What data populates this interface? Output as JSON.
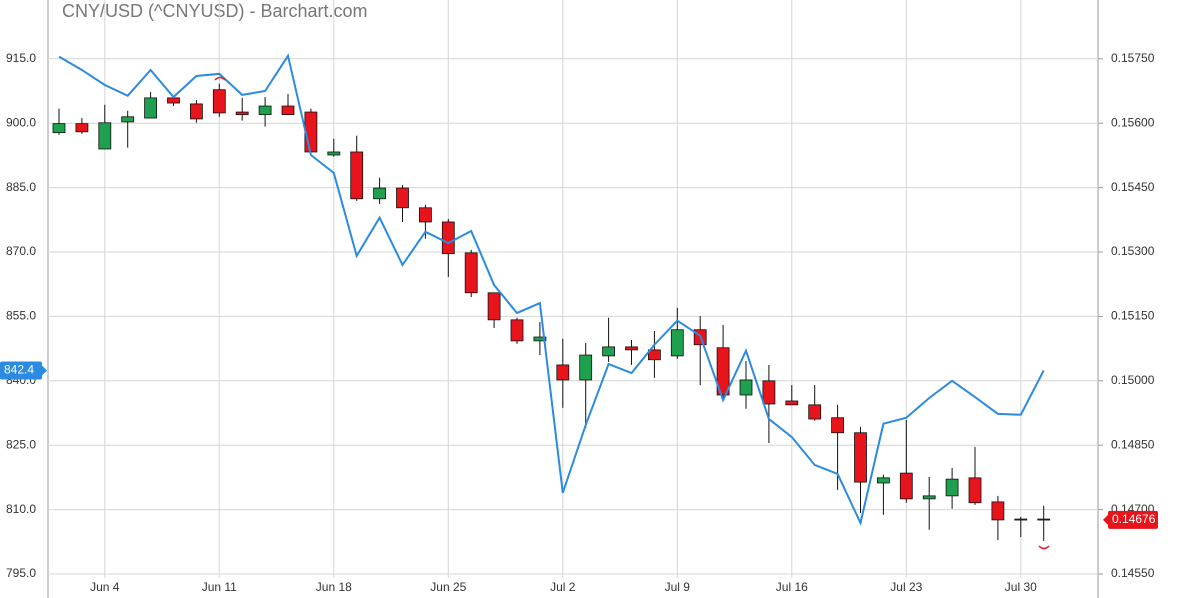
{
  "chart_data": {
    "type": "candlestick",
    "title": "CNY/USD (^CNYUSD) - Barchart.com",
    "categories": [
      null,
      null,
      "Jun 4",
      null,
      null,
      null,
      null,
      "Jun 11",
      null,
      null,
      null,
      null,
      "Jun 18",
      null,
      null,
      null,
      null,
      "Jun 25",
      null,
      null,
      null,
      null,
      "Jul 2",
      null,
      null,
      null,
      null,
      "Jul 9",
      null,
      null,
      null,
      null,
      "Jul 16",
      null,
      null,
      null,
      null,
      "Jul 23",
      null,
      null,
      null,
      null,
      "Jul 30",
      null
    ],
    "series": [
      {
        "type": "candlestick",
        "axis": "y2",
        "up_color": "#1ea04e",
        "down_color": "#e8141c",
        "open": [
          0.15578,
          0.15599,
          0.1554,
          0.15603,
          0.15612,
          0.15659,
          0.15645,
          0.15678,
          0.15626,
          0.1562,
          0.1564,
          0.15626,
          0.15526,
          0.15533,
          0.15424,
          0.15449,
          0.15403,
          0.1537,
          0.15298,
          0.15205,
          0.15142,
          0.15093,
          0.15037,
          0.15002,
          0.15058,
          0.15079,
          0.15072,
          0.15058,
          0.15119,
          0.15077,
          0.14967,
          0.15,
          0.14953,
          0.14944,
          0.14914,
          0.14879,
          0.14762,
          0.14785,
          0.14725,
          0.14732,
          0.14774,
          0.14718,
          0.14678,
          0.14678
        ],
        "high": [
          0.15634,
          0.15612,
          0.15643,
          0.15629,
          0.15673,
          0.15664,
          0.15654,
          0.15692,
          0.15659,
          0.15661,
          0.15668,
          0.15634,
          0.15564,
          0.15571,
          0.15473,
          0.15456,
          0.1541,
          0.15377,
          0.15305,
          0.15205,
          0.15147,
          0.15137,
          0.15098,
          0.15088,
          0.15147,
          0.15095,
          0.15116,
          0.1517,
          0.15151,
          0.1513,
          0.15046,
          0.15037,
          0.1499,
          0.1499,
          0.14944,
          0.14893,
          0.14781,
          0.14909,
          0.14776,
          0.14797,
          0.14846,
          0.14732,
          0.14683,
          0.14709
        ],
        "low": [
          0.15573,
          0.15575,
          0.1554,
          0.15543,
          0.15612,
          0.1564,
          0.15601,
          0.15615,
          0.15606,
          0.15592,
          0.1562,
          0.15533,
          0.15522,
          0.15419,
          0.15412,
          0.1537,
          0.15331,
          0.15242,
          0.15195,
          0.15123,
          0.15086,
          0.1506,
          0.14937,
          0.1489,
          0.15044,
          0.15037,
          0.15007,
          0.15051,
          0.1499,
          0.14958,
          0.14935,
          0.14855,
          0.14944,
          0.14907,
          0.14746,
          0.14692,
          0.14688,
          0.14716,
          0.14653,
          0.14702,
          0.14711,
          0.14629,
          0.14636,
          0.14627
        ],
        "close": [
          0.15599,
          0.1558,
          0.15601,
          0.15615,
          0.15659,
          0.15647,
          0.1561,
          0.15624,
          0.1562,
          0.1564,
          0.1562,
          0.15533,
          0.15533,
          0.15424,
          0.15449,
          0.15403,
          0.1537,
          0.15296,
          0.15205,
          0.15142,
          0.15093,
          0.15102,
          0.15002,
          0.1506,
          0.15079,
          0.15072,
          0.15049,
          0.15119,
          0.15084,
          0.14967,
          0.15002,
          0.14946,
          0.14944,
          0.14911,
          0.14879,
          0.14764,
          0.14774,
          0.14725,
          0.14732,
          0.14771,
          0.14716,
          0.14676,
          0.14676,
          0.14676
        ]
      },
      {
        "type": "line",
        "color": "#2b8be0",
        "values": [
          915.5,
          912.4,
          908.9,
          906.4,
          912.4,
          906.1,
          911.0,
          911.5,
          906.6,
          907.5,
          915.7,
          892.6,
          888.4,
          869.1,
          878.0,
          867.0,
          874.7,
          872.1,
          874.9,
          862.3,
          855.8,
          858.1,
          813.9,
          829.7,
          843.9,
          841.8,
          848.4,
          854.0,
          850.5,
          835.5,
          847.0,
          831.1,
          826.9,
          820.4,
          818.3,
          806.9,
          830.0,
          831.4,
          836.0,
          840.0,
          836.2,
          832.3,
          832.1,
          842.4
        ]
      }
    ],
    "ylim": [
      795,
      928
    ],
    "yticks": [
      {
        "value": 795,
        "label": "795.0"
      },
      {
        "value": 810,
        "label": "810.0"
      },
      {
        "value": 825,
        "label": "825.0"
      },
      {
        "value": 840,
        "label": "840.0"
      },
      {
        "value": 855,
        "label": "855.0"
      },
      {
        "value": 870,
        "label": "870.0"
      },
      {
        "value": 885,
        "label": "885.0"
      },
      {
        "value": 900,
        "label": "900.0"
      },
      {
        "value": 915,
        "label": "915.0"
      }
    ],
    "y2lim": [
      0.1455,
      0.1588
    ],
    "y2ticks": [
      {
        "value": 0.1455,
        "label": "0.14550"
      },
      {
        "value": 0.147,
        "label": "0.14700"
      },
      {
        "value": 0.1485,
        "label": "0.14850"
      },
      {
        "value": 0.15,
        "label": "0.15000"
      },
      {
        "value": 0.1515,
        "label": "0.15150"
      },
      {
        "value": 0.153,
        "label": "0.15300"
      },
      {
        "value": 0.1545,
        "label": "0.15450"
      },
      {
        "value": 0.156,
        "label": "0.15600"
      },
      {
        "value": 0.1575,
        "label": "0.15750"
      }
    ],
    "grid": true
  }
}
